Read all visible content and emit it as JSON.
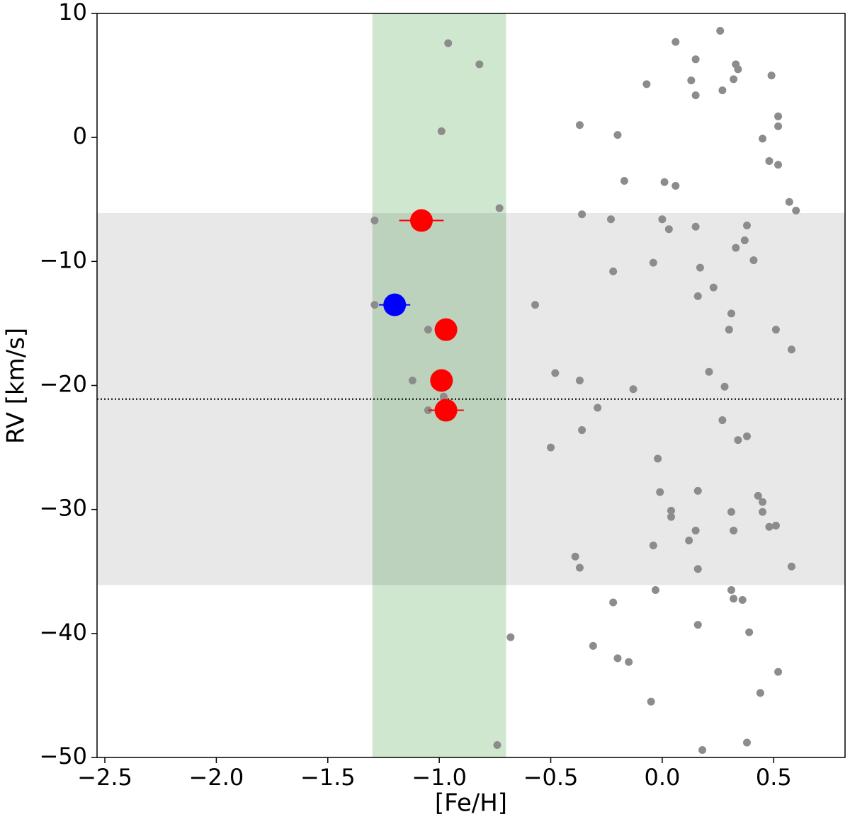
{
  "chart_data": {
    "type": "scatter",
    "xlabel": "[Fe/H]",
    "ylabel": "RV [km/s]",
    "xlim": [
      -2.535,
      0.82
    ],
    "ylim": [
      -50,
      10
    ],
    "xticks": [
      {
        "value": -2.5,
        "label": "−2.5"
      },
      {
        "value": -2.0,
        "label": "−2.0"
      },
      {
        "value": -1.5,
        "label": "−1.5"
      },
      {
        "value": -1.0,
        "label": "−1.0"
      },
      {
        "value": -0.5,
        "label": "−0.5"
      },
      {
        "value": 0.0,
        "label": "0.0"
      },
      {
        "value": 0.5,
        "label": "0.5"
      }
    ],
    "yticks": [
      10,
      0,
      {
        "value": -10,
        "label": "−10"
      },
      {
        "value": -20,
        "label": "−20"
      },
      {
        "value": -30,
        "label": "−30"
      },
      {
        "value": -40,
        "label": "−40"
      },
      {
        "value": -50,
        "label": "−50"
      }
    ],
    "vspan": {
      "range": [
        -1.3,
        -0.7
      ],
      "color": "#cce6cc"
    },
    "hspan": {
      "range": [
        -36.1,
        -6.1
      ],
      "color": "#e8e8e8"
    },
    "hline": -21.1,
    "series": [
      {
        "color": "#8c8c8c",
        "x": [
          -0.96,
          -0.82,
          -0.99,
          -0.73,
          -1.29,
          -1.29,
          -1.05,
          -1.12,
          -0.98,
          -1.05,
          -0.68,
          -0.74,
          -0.57,
          -0.48,
          -0.5,
          -0.37,
          -0.36,
          -0.37,
          -0.36,
          -0.39,
          -0.37,
          -0.31,
          -0.29,
          -0.2,
          -0.17,
          -0.23,
          -0.22,
          -0.13,
          -0.22,
          -0.2,
          -0.15,
          -0.07,
          0.06,
          0.15,
          0.13,
          0.15,
          0.26,
          0.33,
          0.34,
          0.32,
          0.27,
          0.49,
          0.52,
          0.52,
          0.45,
          0.48,
          0.52,
          0.01,
          0.06,
          0.0,
          0.03,
          0.15,
          0.57,
          0.6,
          0.38,
          0.37,
          0.33,
          0.41,
          -0.04,
          0.17,
          0.23,
          0.16,
          0.31,
          0.3,
          0.51,
          0.58,
          0.21,
          0.28,
          0.27,
          0.38,
          0.34,
          -0.02,
          -0.01,
          0.16,
          0.04,
          0.04,
          0.43,
          0.45,
          0.45,
          0.31,
          0.32,
          0.15,
          0.51,
          0.48,
          0.12,
          -0.04,
          0.16,
          0.58,
          -0.03,
          0.31,
          0.32,
          0.36,
          0.16,
          0.39,
          0.52,
          0.44,
          -0.05,
          0.38,
          0.18
        ],
        "values": [
          7.6,
          5.9,
          0.5,
          -5.7,
          -6.7,
          -13.5,
          -15.5,
          -19.6,
          -20.9,
          -22.0,
          -40.3,
          -49.0,
          -13.5,
          -19.0,
          -25.0,
          1.0,
          -6.2,
          -19.6,
          -23.6,
          -33.8,
          -34.7,
          -41.0,
          -21.8,
          0.2,
          -3.5,
          -6.6,
          -10.8,
          -20.3,
          -37.5,
          -42.0,
          -42.3,
          4.3,
          7.7,
          6.3,
          4.6,
          3.4,
          8.6,
          5.9,
          5.5,
          4.7,
          3.8,
          5.0,
          1.7,
          0.9,
          -0.1,
          -1.9,
          -2.2,
          -3.6,
          -3.9,
          -6.6,
          -7.4,
          -7.2,
          -5.2,
          -5.9,
          -7.1,
          -8.3,
          -8.9,
          -9.9,
          -10.1,
          -10.5,
          -12.1,
          -12.8,
          -14.2,
          -15.5,
          -15.5,
          -17.1,
          -18.9,
          -20.1,
          -22.8,
          -24.1,
          -24.4,
          -25.9,
          -28.6,
          -28.5,
          -30.1,
          -30.6,
          -28.9,
          -29.4,
          -30.2,
          -30.2,
          -31.7,
          -31.7,
          -31.3,
          -31.4,
          -32.5,
          -32.9,
          -34.8,
          -34.6,
          -36.5,
          -36.5,
          -37.2,
          -37.3,
          -39.3,
          -39.9,
          -43.1,
          -44.8,
          -45.5,
          -48.8,
          -49.4
        ]
      },
      {
        "color": "#ff0000",
        "x": [
          -1.08,
          -0.97,
          -0.99,
          -0.97
        ],
        "values": [
          -6.7,
          -15.5,
          -19.6,
          -22.0
        ],
        "xerr": [
          0.1,
          0.05,
          0.05,
          0.08
        ]
      },
      {
        "color": "#0000ff",
        "x": [
          -1.2
        ],
        "values": [
          -13.5
        ],
        "xerr": [
          0.07
        ]
      }
    ]
  }
}
